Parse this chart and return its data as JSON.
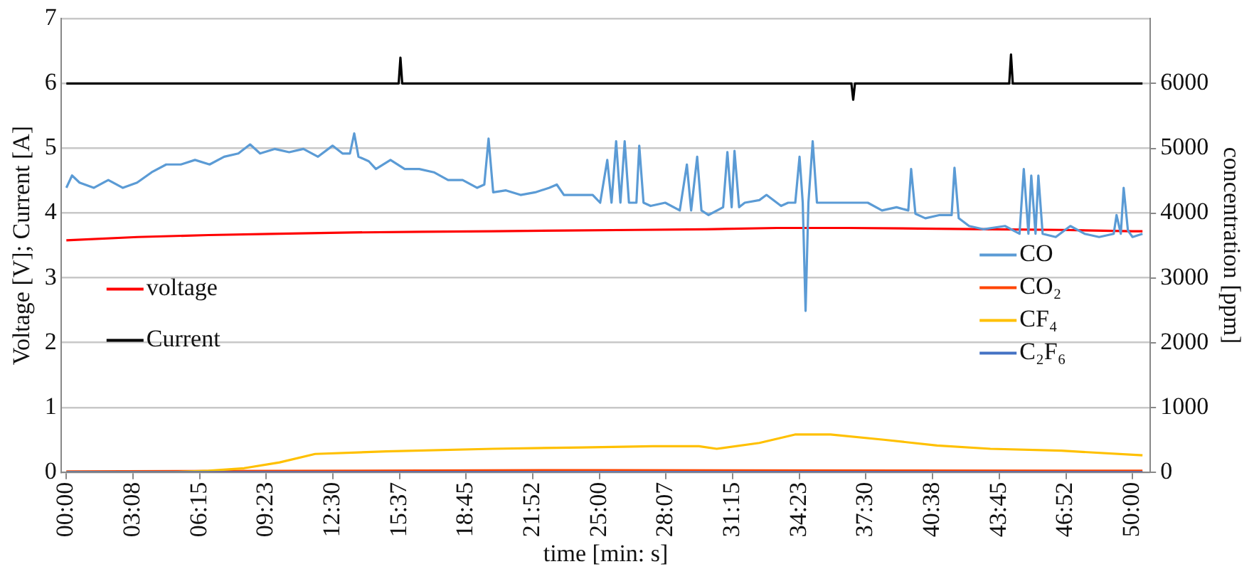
{
  "chart_data": {
    "type": "line",
    "xlabel": "time [min: s]",
    "ylabel": "Voltage [V]; Current [A]",
    "y2label": "concentration [ppm]",
    "xlim": [
      -15,
      3050
    ],
    "xticks": [
      {
        "value": 0,
        "label": "00:00"
      },
      {
        "value": 187.5,
        "label": "03:08"
      },
      {
        "value": 375,
        "label": "06:15"
      },
      {
        "value": 562.5,
        "label": "09:23"
      },
      {
        "value": 750,
        "label": "12:30"
      },
      {
        "value": 937.5,
        "label": "15:37"
      },
      {
        "value": 1125,
        "label": "18:45"
      },
      {
        "value": 1312.5,
        "label": "21:52"
      },
      {
        "value": 1500,
        "label": "25:00"
      },
      {
        "value": 1687.5,
        "label": "28:07"
      },
      {
        "value": 1875,
        "label": "31:15"
      },
      {
        "value": 2062.5,
        "label": "34:23"
      },
      {
        "value": 2250,
        "label": "37:30"
      },
      {
        "value": 2437.5,
        "label": "40:38"
      },
      {
        "value": 2625,
        "label": "43:45"
      },
      {
        "value": 2812.5,
        "label": "46:52"
      },
      {
        "value": 3000,
        "label": "50:00"
      }
    ],
    "ylim": [
      0,
      7
    ],
    "yticks": [
      0,
      1,
      2,
      3,
      4,
      5,
      6,
      7
    ],
    "y2lim": [
      0,
      7000
    ],
    "y2ticks": [
      0,
      1000,
      2000,
      3000,
      4000,
      5000,
      6000
    ],
    "grid": "y",
    "legend": "right",
    "marker": "none",
    "line_style": "solid",
    "series": [
      {
        "name": "voltage",
        "color": "#ff0000",
        "x": [
          0,
          200,
          400,
          600,
          800,
          1000,
          1200,
          1400,
          1600,
          1800,
          2000,
          2200,
          2400,
          2600,
          2800,
          3000,
          3028
        ],
        "values": [
          3.58,
          3.63,
          3.66,
          3.68,
          3.7,
          3.71,
          3.72,
          3.73,
          3.74,
          3.75,
          3.77,
          3.77,
          3.76,
          3.75,
          3.74,
          3.72,
          3.72
        ]
      },
      {
        "name": "Current",
        "color": "#000000",
        "x": [
          0,
          935,
          940,
          945,
          2209,
          2214,
          2219,
          2653,
          2658,
          2663,
          3028
        ],
        "values": [
          6,
          6,
          6.4,
          6,
          6,
          5.75,
          6,
          6,
          6.45,
          6,
          6
        ]
      },
      {
        "name": "CO",
        "color": "#5b9bd5",
        "axis": "y2",
        "x": [
          0,
          16,
          37,
          77,
          118,
          159,
          199,
          240,
          281,
          322,
          362,
          403,
          444,
          484,
          517,
          545,
          586,
          627,
          667,
          708,
          749,
          777,
          798,
          810,
          822,
          851,
          871,
          912,
          952,
          993,
          1034,
          1074,
          1115,
          1156,
          1176,
          1188,
          1201,
          1237,
          1278,
          1319,
          1359,
          1380,
          1400,
          1441,
          1481,
          1502,
          1522,
          1534,
          1547,
          1559,
          1571,
          1583,
          1604,
          1612,
          1624,
          1644,
          1685,
          1726,
          1746,
          1758,
          1775,
          1787,
          1807,
          1848,
          1860,
          1872,
          1880,
          1893,
          1909,
          1950,
          1970,
          2011,
          2031,
          2051,
          2063,
          2072,
          2080,
          2088,
          2100,
          2112,
          2173,
          2255,
          2295,
          2336,
          2369,
          2377,
          2389,
          2417,
          2458,
          2491,
          2499,
          2511,
          2540,
          2580,
          2641,
          2682,
          2694,
          2707,
          2715,
          2727,
          2735,
          2747,
          2784,
          2825,
          2865,
          2906,
          2947,
          2955,
          2967,
          2975,
          2987,
          3000,
          3028
        ],
        "values": [
          4390,
          4580,
          4470,
          4390,
          4510,
          4390,
          4470,
          4630,
          4750,
          4750,
          4820,
          4750,
          4870,
          4920,
          5060,
          4920,
          4990,
          4940,
          4990,
          4870,
          5040,
          4920,
          4920,
          5230,
          4870,
          4800,
          4680,
          4820,
          4680,
          4680,
          4630,
          4510,
          4510,
          4390,
          4440,
          5150,
          4320,
          4350,
          4280,
          4320,
          4390,
          4440,
          4280,
          4280,
          4280,
          4160,
          4820,
          4160,
          5110,
          4160,
          5110,
          4160,
          4160,
          5040,
          4160,
          4110,
          4160,
          4040,
          4750,
          4040,
          4870,
          4040,
          3970,
          4090,
          4940,
          4090,
          4960,
          4090,
          4160,
          4200,
          4280,
          4110,
          4160,
          4160,
          4870,
          4160,
          2490,
          4160,
          5110,
          4160,
          4160,
          4160,
          4040,
          4090,
          4040,
          4680,
          3990,
          3920,
          3970,
          3970,
          4700,
          3920,
          3800,
          3750,
          3800,
          3680,
          4680,
          3680,
          4580,
          3680,
          4580,
          3680,
          3630,
          3800,
          3680,
          3630,
          3680,
          3970,
          3680,
          4390,
          3730,
          3630,
          3680
        ]
      },
      {
        "name": "CO₂",
        "color": "#ff4500",
        "axis": "y2",
        "x": [
          0,
          1500,
          3028
        ],
        "values": [
          10,
          30,
          20
        ]
      },
      {
        "name": "CF₄",
        "color": "#ffc000",
        "axis": "y2",
        "x": [
          0,
          300,
          400,
          500,
          600,
          700,
          900,
          1200,
          1450,
          1650,
          1780,
          1830,
          1950,
          2050,
          2150,
          2300,
          2450,
          2600,
          2800,
          3028
        ],
        "values": [
          0,
          0,
          20,
          60,
          150,
          280,
          320,
          360,
          380,
          400,
          400,
          360,
          450,
          580,
          580,
          500,
          410,
          360,
          330,
          260
        ]
      },
      {
        "name": "C₂F₆",
        "color": "#4472c4",
        "axis": "y2",
        "x": [
          0,
          3028
        ],
        "values": [
          0,
          0
        ]
      }
    ]
  }
}
